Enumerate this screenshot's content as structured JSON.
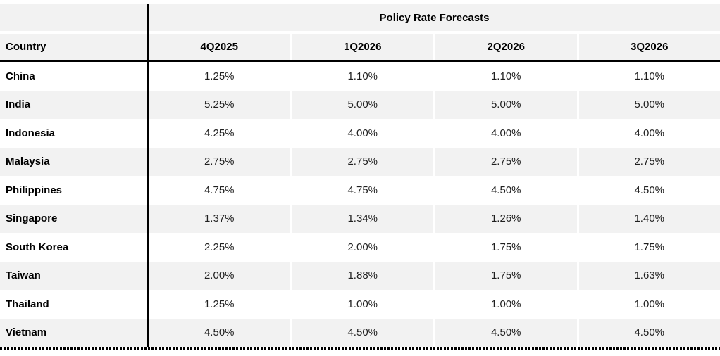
{
  "chart_data": {
    "type": "table",
    "title": "Policy Rate Forecasts",
    "columns": [
      "Country",
      "4Q2025",
      "1Q2026",
      "2Q2026",
      "3Q2026"
    ],
    "rows": [
      [
        "China",
        "1.25%",
        "1.10%",
        "1.10%",
        "1.10%"
      ],
      [
        "India",
        "5.25%",
        "5.00%",
        "5.00%",
        "5.00%"
      ],
      [
        "Indonesia",
        "4.25%",
        "4.00%",
        "4.00%",
        "4.00%"
      ],
      [
        "Malaysia",
        "2.75%",
        "2.75%",
        "2.75%",
        "2.75%"
      ],
      [
        "Philippines",
        "4.75%",
        "4.75%",
        "4.50%",
        "4.50%"
      ],
      [
        "Singapore",
        "1.37%",
        "1.34%",
        "1.26%",
        "1.40%"
      ],
      [
        "South Korea",
        "2.25%",
        "2.00%",
        "1.75%",
        "1.75%"
      ],
      [
        "Taiwan",
        "2.00%",
        "1.88%",
        "1.75%",
        "1.63%"
      ],
      [
        "Thailand",
        "1.25%",
        "1.00%",
        "1.00%",
        "1.00%"
      ],
      [
        "Vietnam",
        "4.50%",
        "4.50%",
        "4.50%",
        "4.50%"
      ]
    ],
    "layout": {
      "stripe_pattern": "alternating rows, second row shaded",
      "legend": "none",
      "grid": "white gutters between shaded cells"
    }
  },
  "colors": {
    "stripe": "#f2f2f2",
    "rule": "#000000",
    "value_text": "#1f1f1f"
  }
}
